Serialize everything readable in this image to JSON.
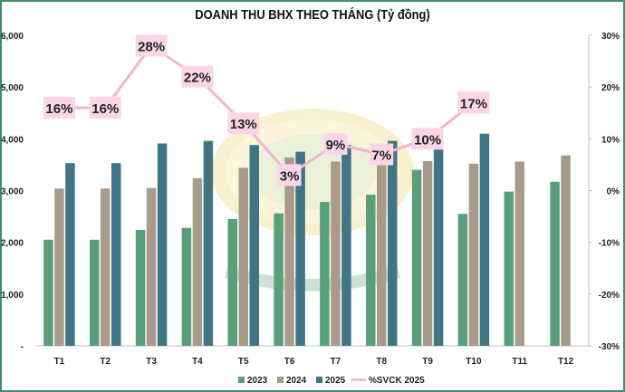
{
  "chart_data": {
    "type": "bar",
    "title": "DOANH THU BHX THEO THÁNG (Tỷ đồng)",
    "categories": [
      "T1",
      "T2",
      "T3",
      "T4",
      "T5",
      "T6",
      "T7",
      "T8",
      "T9",
      "T10",
      "T11",
      "T12"
    ],
    "series": [
      {
        "name": "2023",
        "color": "#5a9e7a",
        "values": [
          2050,
          2050,
          2240,
          2280,
          2450,
          2560,
          2780,
          2920,
          3400,
          2550,
          2980,
          3170
        ]
      },
      {
        "name": "2024",
        "color": "#a99b8a",
        "values": [
          3040,
          3040,
          3050,
          3240,
          3440,
          3640,
          3560,
          3650,
          3570,
          3520,
          3560,
          3680
        ]
      },
      {
        "name": "2025",
        "color": "#3f7584",
        "values": [
          3530,
          3530,
          3910,
          3960,
          3880,
          3750,
          3880,
          3960,
          3920,
          4100,
          null,
          null
        ]
      }
    ],
    "line_series": {
      "name": "%SVCK 2025",
      "color": "#f5b3cf",
      "values": [
        16,
        16,
        28,
        22,
        13,
        3,
        9,
        7,
        10,
        17
      ],
      "labels": [
        "16%",
        "16%",
        "28%",
        "22%",
        "13%",
        "3%",
        "9%",
        "7%",
        "10%",
        "17%"
      ]
    },
    "y_left": {
      "min": 0,
      "max": 6000,
      "ticks": [
        "-",
        "1,000",
        "2,000",
        "3,000",
        "4,000",
        "5,000",
        "6,000"
      ]
    },
    "y_right": {
      "min": -30,
      "max": 30,
      "ticks": [
        "-30%",
        "-20%",
        "-10%",
        "0%",
        "10%",
        "20%",
        "30%"
      ]
    },
    "legend": {
      "position": "bottom",
      "items": [
        "2023",
        "2024",
        "2025",
        "%SVCK 2025"
      ]
    },
    "grid": false
  }
}
